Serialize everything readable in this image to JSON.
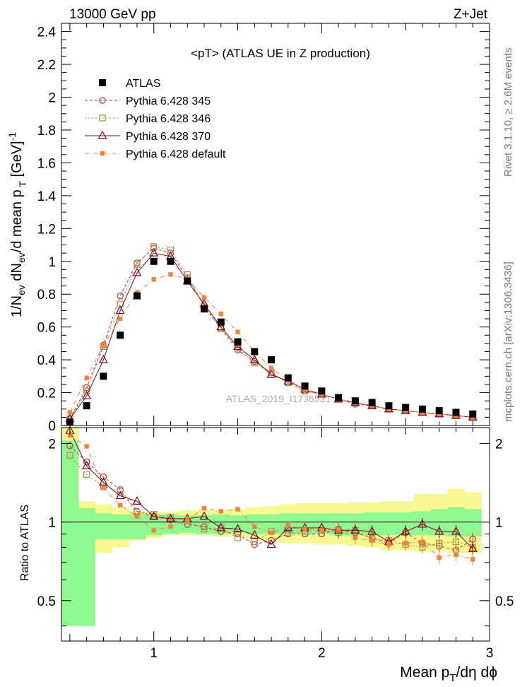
{
  "header": {
    "left": "13000 GeV pp",
    "right": "Z+Jet"
  },
  "sidebar": {
    "top": "Rivet 3.1.10, ≥ 2.6M events",
    "bottom": "mcplots.cern.ch [arXiv:1306.3436]"
  },
  "watermark": "ATLAS_2019_I1736531",
  "colors": {
    "atlas": "#000000",
    "p345": "#b2383c",
    "p346": "#b08a4a",
    "p370": "#7a0a1a",
    "pdefault": "#f0843c",
    "band_inner": "#90f890",
    "band_outer": "#f8f890"
  },
  "chart_data": {
    "type": "line",
    "title": "<pT> (ATLAS UE in Z production)",
    "xlabel": "Mean p_T/dη dϕ",
    "ylabel": "1/N_ev dN_ev/d mean p_T [GeV]^-1",
    "ratio_ylabel": "Ratio to ATLAS",
    "xlim": [
      0.45,
      3.0
    ],
    "ylim": [
      0,
      2.45
    ],
    "ratio_ylim": [
      0.35,
      2.3
    ],
    "xticks": [
      "1",
      "2",
      "3"
    ],
    "yticks": [
      "0",
      "0.2",
      "0.4",
      "0.6",
      "0.8",
      "1",
      "1.2",
      "1.4",
      "1.6",
      "1.8",
      "2",
      "2.2",
      "2.4"
    ],
    "ratio_yticks": [
      "0.5",
      "1",
      "2"
    ],
    "legend_position": "top-left",
    "x": [
      0.5,
      0.6,
      0.7,
      0.8,
      0.9,
      1.0,
      1.1,
      1.2,
      1.3,
      1.4,
      1.5,
      1.6,
      1.7,
      1.8,
      1.9,
      2.0,
      2.1,
      2.2,
      2.3,
      2.4,
      2.5,
      2.6,
      2.7,
      2.8,
      2.9
    ],
    "data": {
      "name": "ATLAS",
      "values": [
        0.02,
        0.12,
        0.3,
        0.55,
        0.79,
        1.0,
        1.0,
        0.88,
        0.71,
        0.63,
        0.51,
        0.45,
        0.4,
        0.29,
        0.24,
        0.21,
        0.17,
        0.15,
        0.14,
        0.12,
        0.11,
        0.1,
        0.09,
        0.08,
        0.07
      ]
    },
    "series": [
      {
        "name": "Pythia 6.428 345",
        "marker": "open-circle",
        "dash": "4,3",
        "values": [
          0.04,
          0.23,
          0.49,
          0.79,
          0.99,
          1.08,
          1.05,
          0.9,
          0.73,
          0.59,
          0.46,
          0.39,
          0.32,
          0.26,
          0.21,
          0.19,
          0.16,
          0.13,
          0.12,
          0.1,
          0.09,
          0.08,
          0.07,
          0.06,
          0.05
        ],
        "ratio": [
          1.96,
          1.7,
          1.49,
          1.33,
          1.1,
          1.05,
          1.02,
          0.98,
          0.96,
          0.92,
          0.9,
          0.82,
          0.85,
          0.9,
          0.9,
          0.9,
          0.94,
          0.91,
          0.87,
          0.83,
          0.91,
          0.83,
          0.81,
          0.78,
          0.86
        ]
      },
      {
        "name": "Pythia 6.428 346",
        "marker": "open-square",
        "dash": "2,3",
        "values": [
          0.04,
          0.21,
          0.48,
          0.74,
          0.98,
          1.09,
          1.07,
          0.92,
          0.72,
          0.59,
          0.47,
          0.38,
          0.32,
          0.26,
          0.21,
          0.19,
          0.16,
          0.14,
          0.12,
          0.1,
          0.09,
          0.08,
          0.07,
          0.06,
          0.05
        ],
        "ratio": [
          1.8,
          1.52,
          1.37,
          1.31,
          1.09,
          1.07,
          1.04,
          1.01,
          0.94,
          0.95,
          0.87,
          0.84,
          0.92,
          0.91,
          0.92,
          0.93,
          0.91,
          0.93,
          0.86,
          0.85,
          0.82,
          0.8,
          0.83,
          0.84,
          0.8
        ]
      },
      {
        "name": "Pythia 6.428 370",
        "marker": "open-triangle",
        "dash": "",
        "values": [
          0.04,
          0.18,
          0.4,
          0.7,
          0.93,
          1.05,
          1.03,
          0.88,
          0.74,
          0.6,
          0.48,
          0.4,
          0.31,
          0.27,
          0.22,
          0.19,
          0.16,
          0.14,
          0.12,
          0.1,
          0.09,
          0.08,
          0.07,
          0.06,
          0.05
        ],
        "ratio": [
          2.24,
          1.64,
          1.42,
          1.26,
          1.2,
          1.05,
          1.03,
          1.03,
          1.05,
          0.95,
          0.94,
          0.89,
          0.82,
          0.95,
          0.95,
          0.95,
          0.93,
          0.93,
          0.92,
          0.84,
          0.92,
          0.98,
          0.92,
          0.92,
          0.79
        ]
      },
      {
        "name": "Pythia 6.428 default",
        "marker": "filled-square",
        "dash": "6,3,1,3",
        "values": [
          0.08,
          0.29,
          0.49,
          0.65,
          0.81,
          0.89,
          0.92,
          0.89,
          0.78,
          0.68,
          0.57,
          0.45,
          0.35,
          0.28,
          0.22,
          0.19,
          0.16,
          0.14,
          0.12,
          0.1,
          0.09,
          0.08,
          0.07,
          0.06,
          0.05
        ],
        "ratio": [
          2.15,
          1.95,
          1.35,
          1.16,
          1.05,
          0.93,
          0.96,
          1.02,
          1.13,
          1.1,
          1.12,
          0.96,
          0.91,
          0.97,
          0.94,
          0.93,
          0.94,
          0.87,
          0.85,
          0.82,
          0.83,
          0.84,
          0.73,
          0.75,
          0.72
        ]
      }
    ],
    "band": {
      "inner_lo": [
        0.4,
        0.4,
        0.86,
        0.86,
        0.86,
        0.89,
        0.9,
        0.91,
        0.9,
        0.9,
        0.91,
        0.9,
        0.9,
        0.9,
        0.9,
        0.9,
        0.89,
        0.89,
        0.89,
        0.89,
        0.89,
        0.89,
        0.89,
        0.88,
        0.88
      ],
      "inner_hi": [
        2.05,
        1.13,
        1.08,
        1.07,
        1.07,
        1.07,
        1.07,
        1.06,
        1.06,
        1.07,
        1.06,
        1.07,
        1.07,
        1.08,
        1.08,
        1.08,
        1.08,
        1.08,
        1.09,
        1.09,
        1.09,
        1.1,
        1.12,
        1.14,
        1.12
      ],
      "outer_lo": [
        0.4,
        0.76,
        0.76,
        0.8,
        0.85,
        0.87,
        0.89,
        0.89,
        0.89,
        0.88,
        0.88,
        0.86,
        0.84,
        0.83,
        0.83,
        0.82,
        0.82,
        0.81,
        0.8,
        0.78,
        0.78,
        0.77,
        0.77,
        0.76,
        0.76
      ],
      "outer_hi": [
        2.3,
        1.2,
        1.17,
        1.13,
        1.1,
        1.09,
        1.09,
        1.11,
        1.11,
        1.11,
        1.12,
        1.14,
        1.15,
        1.17,
        1.18,
        1.18,
        1.18,
        1.19,
        1.19,
        1.2,
        1.2,
        1.28,
        1.28,
        1.34,
        1.3
      ]
    }
  }
}
